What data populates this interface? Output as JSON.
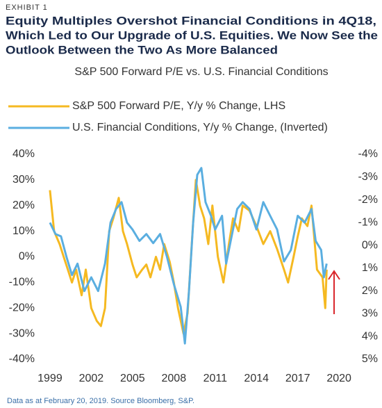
{
  "exhibit": "EXHIBIT 1",
  "title_lines": [
    "Equity Multiples Overshot Financial Conditions in 4Q18,",
    "Which Led to Our Upgrade of U.S. Equities. We Now See the",
    "Outlook Between the Two As More Balanced"
  ],
  "footnote": "Data as at February 20, 2019. Source Bloomberg, S&P.",
  "chart_data": {
    "type": "line",
    "subtitle": "S&P 500 Forward P/E vs. U.S. Financial Conditions",
    "xlim": [
      1998.6,
      2020.8
    ],
    "xticks": [
      1999,
      2002,
      2005,
      2008,
      2011,
      2014,
      2017,
      2020
    ],
    "ylim": [
      -40,
      40
    ],
    "yticks": [
      {
        "value": -40,
        "label": "-40%"
      },
      {
        "value": -30,
        "label": "-30%"
      },
      {
        "value": -20,
        "label": "-20%"
      },
      {
        "value": -10,
        "label": "-10%"
      },
      {
        "value": 0,
        "label": "0%"
      },
      {
        "value": 10,
        "label": "10%"
      },
      {
        "value": 20,
        "label": "20%"
      },
      {
        "value": 30,
        "label": "30%"
      },
      {
        "value": 40,
        "label": "40%"
      }
    ],
    "y2lim": [
      5,
      -4
    ],
    "y2ticks": [
      {
        "value": 5,
        "label": "5%"
      },
      {
        "value": 4,
        "label": "4%"
      },
      {
        "value": 3,
        "label": "3%"
      },
      {
        "value": 2,
        "label": "2%"
      },
      {
        "value": 1,
        "label": "1%"
      },
      {
        "value": 0,
        "label": "0%"
      },
      {
        "value": -1,
        "label": "-1%"
      },
      {
        "value": -2,
        "label": "-2%"
      },
      {
        "value": -3,
        "label": "-3%"
      },
      {
        "value": -4,
        "label": "-4%"
      }
    ],
    "series": [
      {
        "name": "S&P 500 Forward P/E, Y/y % Change, LHS",
        "color": "#f5b921",
        "axis": "y",
        "x": [
          1999.0,
          1999.3,
          1999.7,
          2000.0,
          2000.3,
          2000.6,
          2000.9,
          2001.3,
          2001.6,
          2002.0,
          2002.4,
          2002.7,
          2003.0,
          2003.3,
          2003.6,
          2004.0,
          2004.3,
          2004.6,
          2005.0,
          2005.3,
          2005.7,
          2006.0,
          2006.3,
          2006.7,
          2007.0,
          2007.3,
          2007.7,
          2008.0,
          2008.3,
          2008.7,
          2009.0,
          2009.3,
          2009.6,
          2009.9,
          2010.2,
          2010.5,
          2010.8,
          2011.2,
          2011.6,
          2012.0,
          2012.3,
          2012.7,
          2013.0,
          2013.5,
          2014.0,
          2014.5,
          2015.0,
          2015.5,
          2016.0,
          2016.3,
          2016.7,
          2017.0,
          2017.3,
          2017.7,
          2018.0,
          2018.4,
          2018.8,
          2019.0,
          2019.1
        ],
        "values": [
          26,
          10,
          5,
          0,
          -5,
          -10,
          -5,
          -15,
          -5,
          -20,
          -25,
          -27,
          -20,
          10,
          15,
          23,
          10,
          5,
          -3,
          -8,
          -5,
          -3,
          -8,
          0,
          -5,
          5,
          -2,
          -10,
          -20,
          -30,
          -22,
          5,
          30,
          20,
          15,
          5,
          20,
          0,
          -10,
          5,
          15,
          10,
          20,
          18,
          12,
          5,
          10,
          3,
          -5,
          -10,
          0,
          8,
          15,
          12,
          20,
          -5,
          -8,
          -20,
          -5
        ]
      },
      {
        "name": "U.S. Financial Conditions, Y/y % Change, (Inverted)",
        "color": "#5aaee0",
        "axis": "y2",
        "x": [
          1999.0,
          1999.4,
          1999.8,
          2000.2,
          2000.6,
          2001.0,
          2001.5,
          2002.0,
          2002.5,
          2003.0,
          2003.4,
          2003.8,
          2004.2,
          2004.6,
          2005.0,
          2005.5,
          2006.0,
          2006.5,
          2007.0,
          2007.5,
          2008.0,
          2008.5,
          2008.8,
          2009.1,
          2009.4,
          2009.7,
          2010.0,
          2010.3,
          2010.7,
          2011.0,
          2011.5,
          2011.8,
          2012.2,
          2012.6,
          2013.0,
          2013.5,
          2014.0,
          2014.5,
          2015.0,
          2015.5,
          2016.0,
          2016.5,
          2017.0,
          2017.5,
          2018.0,
          2018.3,
          2018.7,
          2018.9,
          2019.1
        ],
        "values": [
          -1.0,
          -0.5,
          -0.4,
          0.5,
          1.3,
          0.8,
          2.0,
          1.4,
          2.0,
          0.8,
          -1.0,
          -1.6,
          -1.9,
          -1.0,
          -0.7,
          -0.2,
          -0.5,
          -0.1,
          -0.5,
          0.5,
          1.7,
          2.7,
          4.3,
          2.0,
          -1.0,
          -3.1,
          -3.4,
          -1.9,
          -1.3,
          -0.7,
          -1.3,
          0.8,
          -0.4,
          -1.6,
          -1.9,
          -1.6,
          -0.7,
          -1.9,
          -1.3,
          -0.7,
          0.7,
          0.2,
          -1.3,
          -1.0,
          -1.6,
          -0.2,
          0.2,
          1.4,
          0.8
        ]
      }
    ]
  }
}
